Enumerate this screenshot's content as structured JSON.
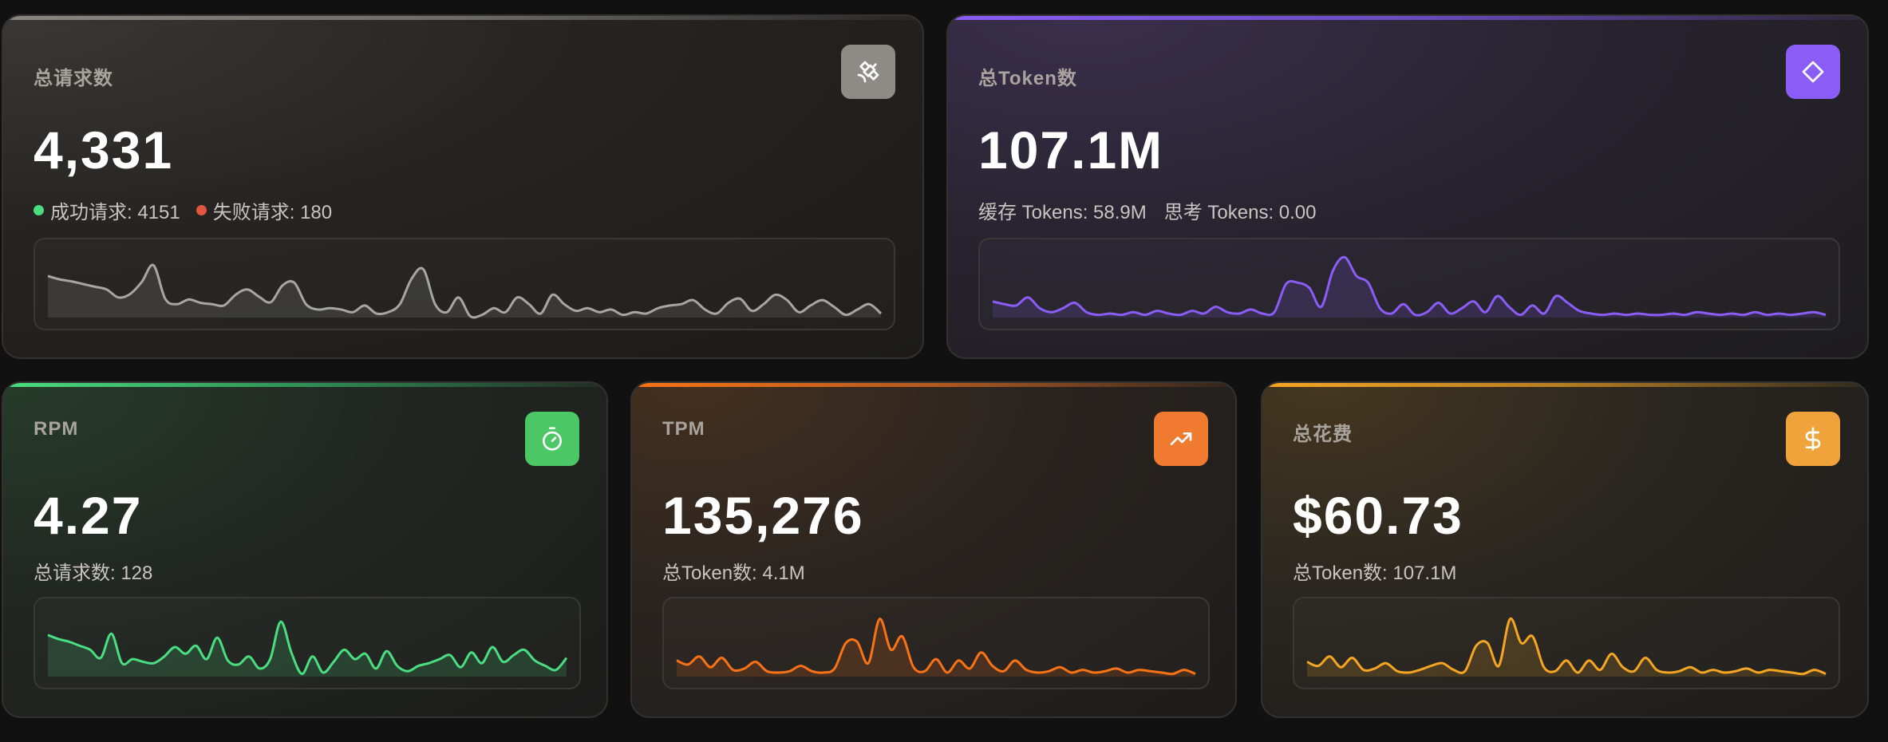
{
  "cards": {
    "total_requests": {
      "title": "总请求数",
      "value": "4,331",
      "success_label": "成功请求: 4151",
      "fail_label": "失败请求: 180",
      "accent": "#a9a5a0",
      "icon": "satellite-icon",
      "trend": [
        0.62,
        0.57,
        0.54,
        0.5,
        0.46,
        0.42,
        0.3,
        0.35,
        0.53,
        0.78,
        0.28,
        0.2,
        0.27,
        0.22,
        0.2,
        0.18,
        0.34,
        0.42,
        0.31,
        0.23,
        0.48,
        0.52,
        0.2,
        0.12,
        0.14,
        0.12,
        0.08,
        0.18,
        0.06,
        0.08,
        0.2,
        0.58,
        0.72,
        0.2,
        0.08,
        0.3,
        0.02,
        0.04,
        0.14,
        0.08,
        0.3,
        0.2,
        0.06,
        0.34,
        0.2,
        0.1,
        0.14,
        0.08,
        0.12,
        0.04,
        0.08,
        0.06,
        0.14,
        0.18,
        0.2,
        0.26,
        0.12,
        0.06,
        0.22,
        0.28,
        0.1,
        0.2,
        0.34,
        0.26,
        0.08,
        0.18,
        0.26,
        0.16,
        0.04,
        0.12,
        0.2,
        0.06
      ]
    },
    "total_tokens": {
      "title": "总Token数",
      "value": "107.1M",
      "cache_label": "缓存 Tokens: 58.9M",
      "think_label": "思考 Tokens: 0.00",
      "accent": "#8b5cf6",
      "icon": "diamond-icon",
      "trend": [
        0.24,
        0.2,
        0.18,
        0.3,
        0.14,
        0.08,
        0.14,
        0.22,
        0.08,
        0.04,
        0.06,
        0.04,
        0.08,
        0.04,
        0.1,
        0.06,
        0.04,
        0.1,
        0.06,
        0.16,
        0.08,
        0.06,
        0.12,
        0.06,
        0.08,
        0.5,
        0.52,
        0.44,
        0.16,
        0.7,
        0.9,
        0.62,
        0.52,
        0.14,
        0.06,
        0.2,
        0.04,
        0.08,
        0.22,
        0.06,
        0.14,
        0.24,
        0.08,
        0.32,
        0.16,
        0.04,
        0.18,
        0.06,
        0.32,
        0.22,
        0.1,
        0.06,
        0.04,
        0.06,
        0.04,
        0.06,
        0.04,
        0.04,
        0.06,
        0.04,
        0.08,
        0.06,
        0.04,
        0.06,
        0.04,
        0.08,
        0.04,
        0.06,
        0.04,
        0.06,
        0.08,
        0.04
      ]
    },
    "rpm": {
      "title": "RPM",
      "value": "4.27",
      "sub_label": "总请求数: 128",
      "accent": "#4ade80",
      "icon": "stopwatch-icon",
      "trend": [
        0.62,
        0.56,
        0.52,
        0.46,
        0.4,
        0.28,
        0.64,
        0.2,
        0.26,
        0.22,
        0.2,
        0.3,
        0.44,
        0.34,
        0.46,
        0.26,
        0.58,
        0.24,
        0.18,
        0.3,
        0.12,
        0.26,
        0.82,
        0.36,
        0.04,
        0.3,
        0.06,
        0.22,
        0.4,
        0.26,
        0.34,
        0.12,
        0.38,
        0.16,
        0.08,
        0.16,
        0.2,
        0.26,
        0.32,
        0.14,
        0.36,
        0.2,
        0.44,
        0.22,
        0.32,
        0.4,
        0.24,
        0.16,
        0.1,
        0.28
      ]
    },
    "tpm": {
      "title": "TPM",
      "value": "135,276",
      "sub_label": "总Token数: 4.1M",
      "accent": "#f97316",
      "icon": "trending-up-icon",
      "trend": [
        0.24,
        0.18,
        0.3,
        0.14,
        0.28,
        0.1,
        0.12,
        0.22,
        0.08,
        0.06,
        0.08,
        0.16,
        0.08,
        0.06,
        0.12,
        0.5,
        0.52,
        0.2,
        0.86,
        0.4,
        0.6,
        0.14,
        0.08,
        0.26,
        0.06,
        0.24,
        0.12,
        0.36,
        0.16,
        0.08,
        0.24,
        0.1,
        0.06,
        0.08,
        0.14,
        0.06,
        0.1,
        0.06,
        0.08,
        0.12,
        0.06,
        0.1,
        0.08,
        0.06,
        0.04,
        0.1,
        0.04
      ]
    },
    "total_cost": {
      "title": "总花费",
      "value": "$60.73",
      "sub_label": "总Token数: 107.1M",
      "accent": "#f5a524",
      "icon": "dollar-icon",
      "trend": [
        0.22,
        0.16,
        0.3,
        0.14,
        0.28,
        0.1,
        0.12,
        0.2,
        0.08,
        0.06,
        0.1,
        0.16,
        0.2,
        0.1,
        0.08,
        0.46,
        0.5,
        0.16,
        0.86,
        0.5,
        0.6,
        0.14,
        0.08,
        0.24,
        0.06,
        0.24,
        0.1,
        0.34,
        0.14,
        0.08,
        0.28,
        0.1,
        0.06,
        0.08,
        0.14,
        0.06,
        0.1,
        0.06,
        0.08,
        0.12,
        0.06,
        0.1,
        0.08,
        0.06,
        0.04,
        0.1,
        0.04
      ]
    }
  }
}
